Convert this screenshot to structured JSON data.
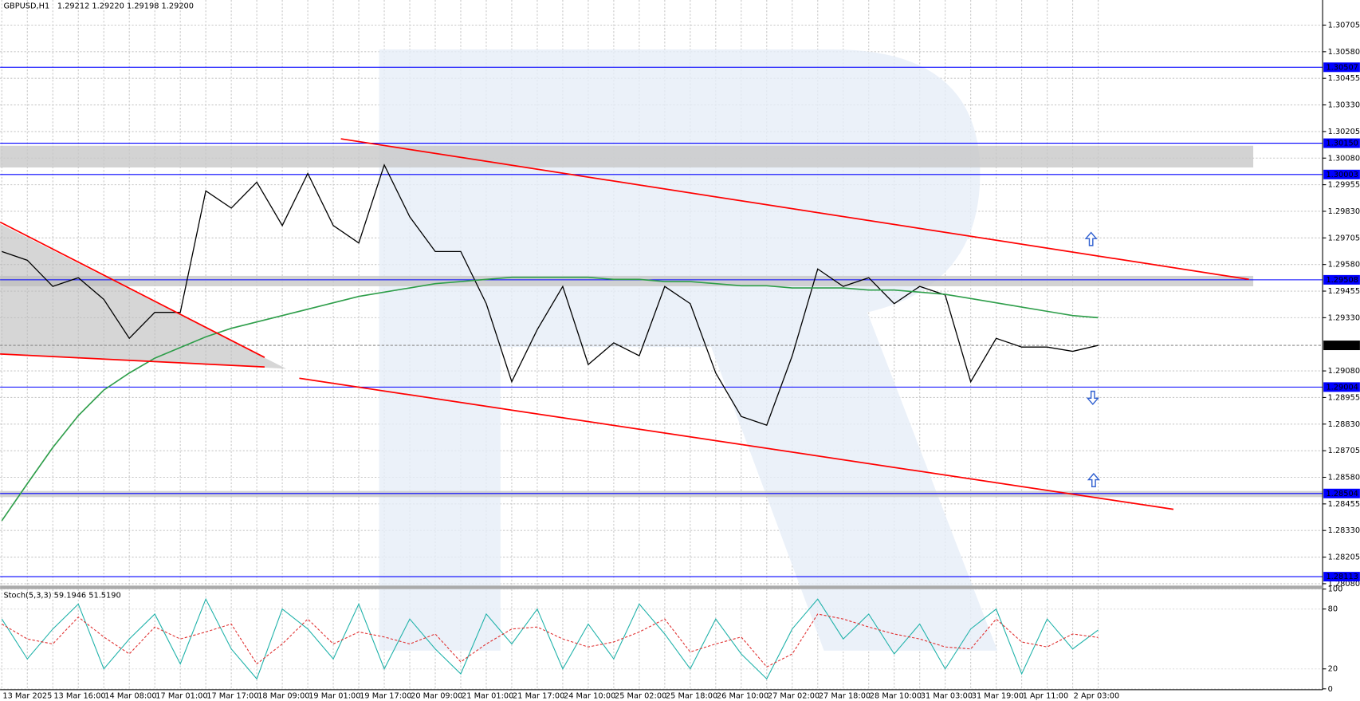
{
  "chart_data": {
    "type": "line",
    "title": "GBPUSD,H1",
    "ohlc": "1.29212 1.29220 1.29198 1.29200",
    "categories": [
      "13 Mar 2025",
      null,
      "13 Mar 16:00",
      null,
      "14 Mar 08:00",
      null,
      "17 Mar 01:00",
      null,
      "17 Mar 17:00",
      null,
      "18 Mar 09:00",
      null,
      "19 Mar 01:00",
      null,
      "19 Mar 17:00",
      null,
      "20 Mar 09:00",
      null,
      "21 Mar 01:00",
      null,
      "21 Mar 17:00",
      null,
      "24 Mar 10:00",
      null,
      "25 Mar 02:00",
      null,
      "25 Mar 18:00",
      null,
      "26 Mar 10:00",
      null,
      "27 Mar 02:00",
      null,
      "27 Mar 18:00",
      null,
      "28 Mar 10:00",
      null,
      "31 Mar 03:00",
      null,
      "31 Mar 19:00",
      null,
      "1 Apr 11:00",
      null,
      "2 Apr 03:00",
      null
    ],
    "series": [
      {
        "color": "#000000",
        "values": [
          1.29641,
          1.296,
          1.29477,
          1.29518,
          1.29416,
          1.29233,
          1.29355,
          1.29355,
          1.29926,
          1.29845,
          1.29967,
          1.29763,
          1.30008,
          1.29763,
          1.29681,
          1.30048,
          1.29804,
          1.29641,
          1.29641,
          1.29396,
          1.29029,
          1.29274,
          1.29477,
          1.2911,
          1.29212,
          1.29151,
          1.29477,
          1.29396,
          1.2907,
          1.28866,
          1.28825,
          1.29151,
          1.29559,
          1.29477,
          1.29518,
          1.29396,
          1.29477,
          1.29437,
          1.29029,
          1.29233,
          1.29192,
          1.29192,
          1.29172,
          1.292
        ]
      },
      {
        "color": "#2e9e4a",
        "values": [
          1.28376,
          1.2855,
          1.2872,
          1.2887,
          1.2899,
          1.2907,
          1.2914,
          1.2919,
          1.2924,
          1.2928,
          1.2931,
          1.2934,
          1.2937,
          1.294,
          1.2943,
          1.2945,
          1.2947,
          1.2949,
          1.295,
          1.2951,
          1.2952,
          1.2952,
          1.2952,
          1.2952,
          1.2951,
          1.2951,
          1.295,
          1.295,
          1.2949,
          1.2948,
          1.2948,
          1.2947,
          1.2947,
          1.2947,
          1.2946,
          1.2946,
          1.2945,
          1.2944,
          1.2942,
          1.294,
          1.2938,
          1.2936,
          1.2934,
          1.2933
        ]
      }
    ],
    "ylim": [
      1.28071,
      1.30823
    ],
    "yticks": [
      {
        "value": 1.30705,
        "label": "1.30705"
      },
      {
        "value": 1.3058,
        "label": "1.30580"
      },
      {
        "value": 1.30455,
        "label": "1.30455"
      },
      {
        "value": 1.3033,
        "label": "1.30330"
      },
      {
        "value": 1.30205,
        "label": "1.30205"
      },
      {
        "value": 1.3008,
        "label": "1.30080"
      },
      {
        "value": 1.29955,
        "label": "1.29955"
      },
      {
        "value": 1.2983,
        "label": "1.29830"
      },
      {
        "value": 1.29705,
        "label": "1.29705"
      },
      {
        "value": 1.2958,
        "label": "1.29580"
      },
      {
        "value": 1.29455,
        "label": "1.29455"
      },
      {
        "value": 1.2933,
        "label": "1.29330"
      },
      {
        "value": 1.2908,
        "label": "1.29080"
      },
      {
        "value": 1.28955,
        "label": "1.28955"
      },
      {
        "value": 1.2883,
        "label": "1.28830"
      },
      {
        "value": 1.28705,
        "label": "1.28705"
      },
      {
        "value": 1.2858,
        "label": "1.28580"
      },
      {
        "value": 1.28455,
        "label": "1.28455"
      },
      {
        "value": 1.2833,
        "label": "1.28330"
      },
      {
        "value": 1.28205,
        "label": "1.28205"
      },
      {
        "value": 1.2808,
        "label": "1.28080"
      }
    ],
    "levels": [
      {
        "value": 1.30507,
        "label": "1.30507"
      },
      {
        "value": 1.3015,
        "label": "1.30150"
      },
      {
        "value": 1.30003,
        "label": "1.30003"
      },
      {
        "value": 1.29508,
        "label": "1.29508"
      },
      {
        "value": 1.29004,
        "label": "1.29004"
      },
      {
        "value": 1.28504,
        "label": "1.28504"
      },
      {
        "value": 1.28113,
        "label": "1.28113"
      }
    ],
    "level_color": "#0000ff",
    "last_price": {
      "value": 1.292,
      "label": "1.29200"
    },
    "grid": true,
    "stochastic": {
      "title": "Stoch(5,3,3) 59.1946 51.5190",
      "ylim": [
        0,
        100
      ],
      "yticks": [
        100,
        80,
        20,
        0
      ],
      "series": [
        {
          "color": "#20b2aa",
          "values": [
            70,
            30,
            60,
            85,
            20,
            50,
            75,
            25,
            90,
            40,
            10,
            80,
            60,
            30,
            85,
            20,
            70,
            40,
            15,
            75,
            45,
            80,
            20,
            65,
            30,
            85,
            55,
            20,
            70,
            35,
            10,
            60,
            90,
            50,
            75,
            35,
            65,
            20,
            60,
            80,
            15,
            70,
            40,
            59
          ]
        },
        {
          "color": "#e03030",
          "values": [
            65,
            50,
            45,
            72,
            52,
            35,
            62,
            50,
            57,
            65,
            25,
            45,
            70,
            45,
            57,
            52,
            45,
            55,
            27,
            45,
            60,
            62,
            50,
            42,
            47,
            57,
            70,
            37,
            45,
            52,
            22,
            35,
            75,
            70,
            62,
            55,
            50,
            42,
            40,
            70,
            47,
            42,
            55,
            51.5
          ]
        }
      ]
    }
  }
}
